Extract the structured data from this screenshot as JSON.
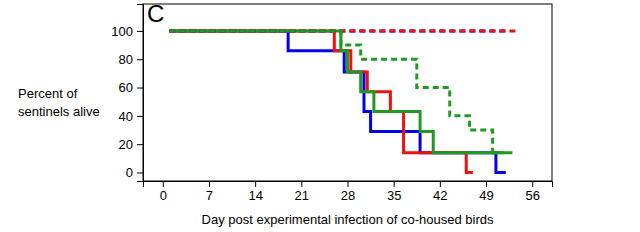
{
  "chart_data": {
    "type": "line",
    "title": "C",
    "xlabel": "Day post experimental infection of co-housed birds",
    "ylabel": [
      "Percent of",
      "sentinels alive"
    ],
    "xlim": [
      -3,
      59
    ],
    "ylim": [
      -6,
      119
    ],
    "xticks": [
      0,
      7,
      14,
      21,
      28,
      35,
      42,
      49,
      56
    ],
    "yticks": [
      0,
      20,
      40,
      60,
      80,
      100
    ],
    "series": [
      {
        "color": "#0000ee",
        "line_style": "solid",
        "x": [
          1,
          19,
          27.5,
          30.5,
          31.5,
          39,
          50.5,
          52
        ],
        "values": [
          100,
          86,
          71,
          43,
          29,
          14,
          0,
          0
        ]
      },
      {
        "color": "#ee1111",
        "line_style": "solid",
        "x": [
          1,
          26,
          28.5,
          31,
          34.5,
          36.5,
          46,
          47
        ],
        "values": [
          100,
          86,
          71,
          57,
          43,
          14,
          0,
          0
        ]
      },
      {
        "color": "#229922",
        "line_style": "solid",
        "x": [
          1,
          27,
          28,
          30,
          32,
          39,
          41,
          53
        ],
        "values": [
          100,
          86,
          71,
          57,
          43,
          29,
          14,
          14
        ]
      },
      {
        "color": "#0000ee",
        "line_style": "dashed",
        "x": [
          1,
          52
        ],
        "values": [
          100,
          100
        ]
      },
      {
        "color": "#ee1111",
        "line_style": "dashed",
        "x": [
          1,
          54
        ],
        "values": [
          100,
          100
        ]
      },
      {
        "color": "#229922",
        "line_style": "dashed",
        "x": [
          1,
          27,
          30,
          38.5,
          43.5,
          46.5,
          50,
          52
        ],
        "values": [
          100,
          90,
          80,
          60,
          40,
          30,
          14,
          14
        ]
      }
    ]
  }
}
